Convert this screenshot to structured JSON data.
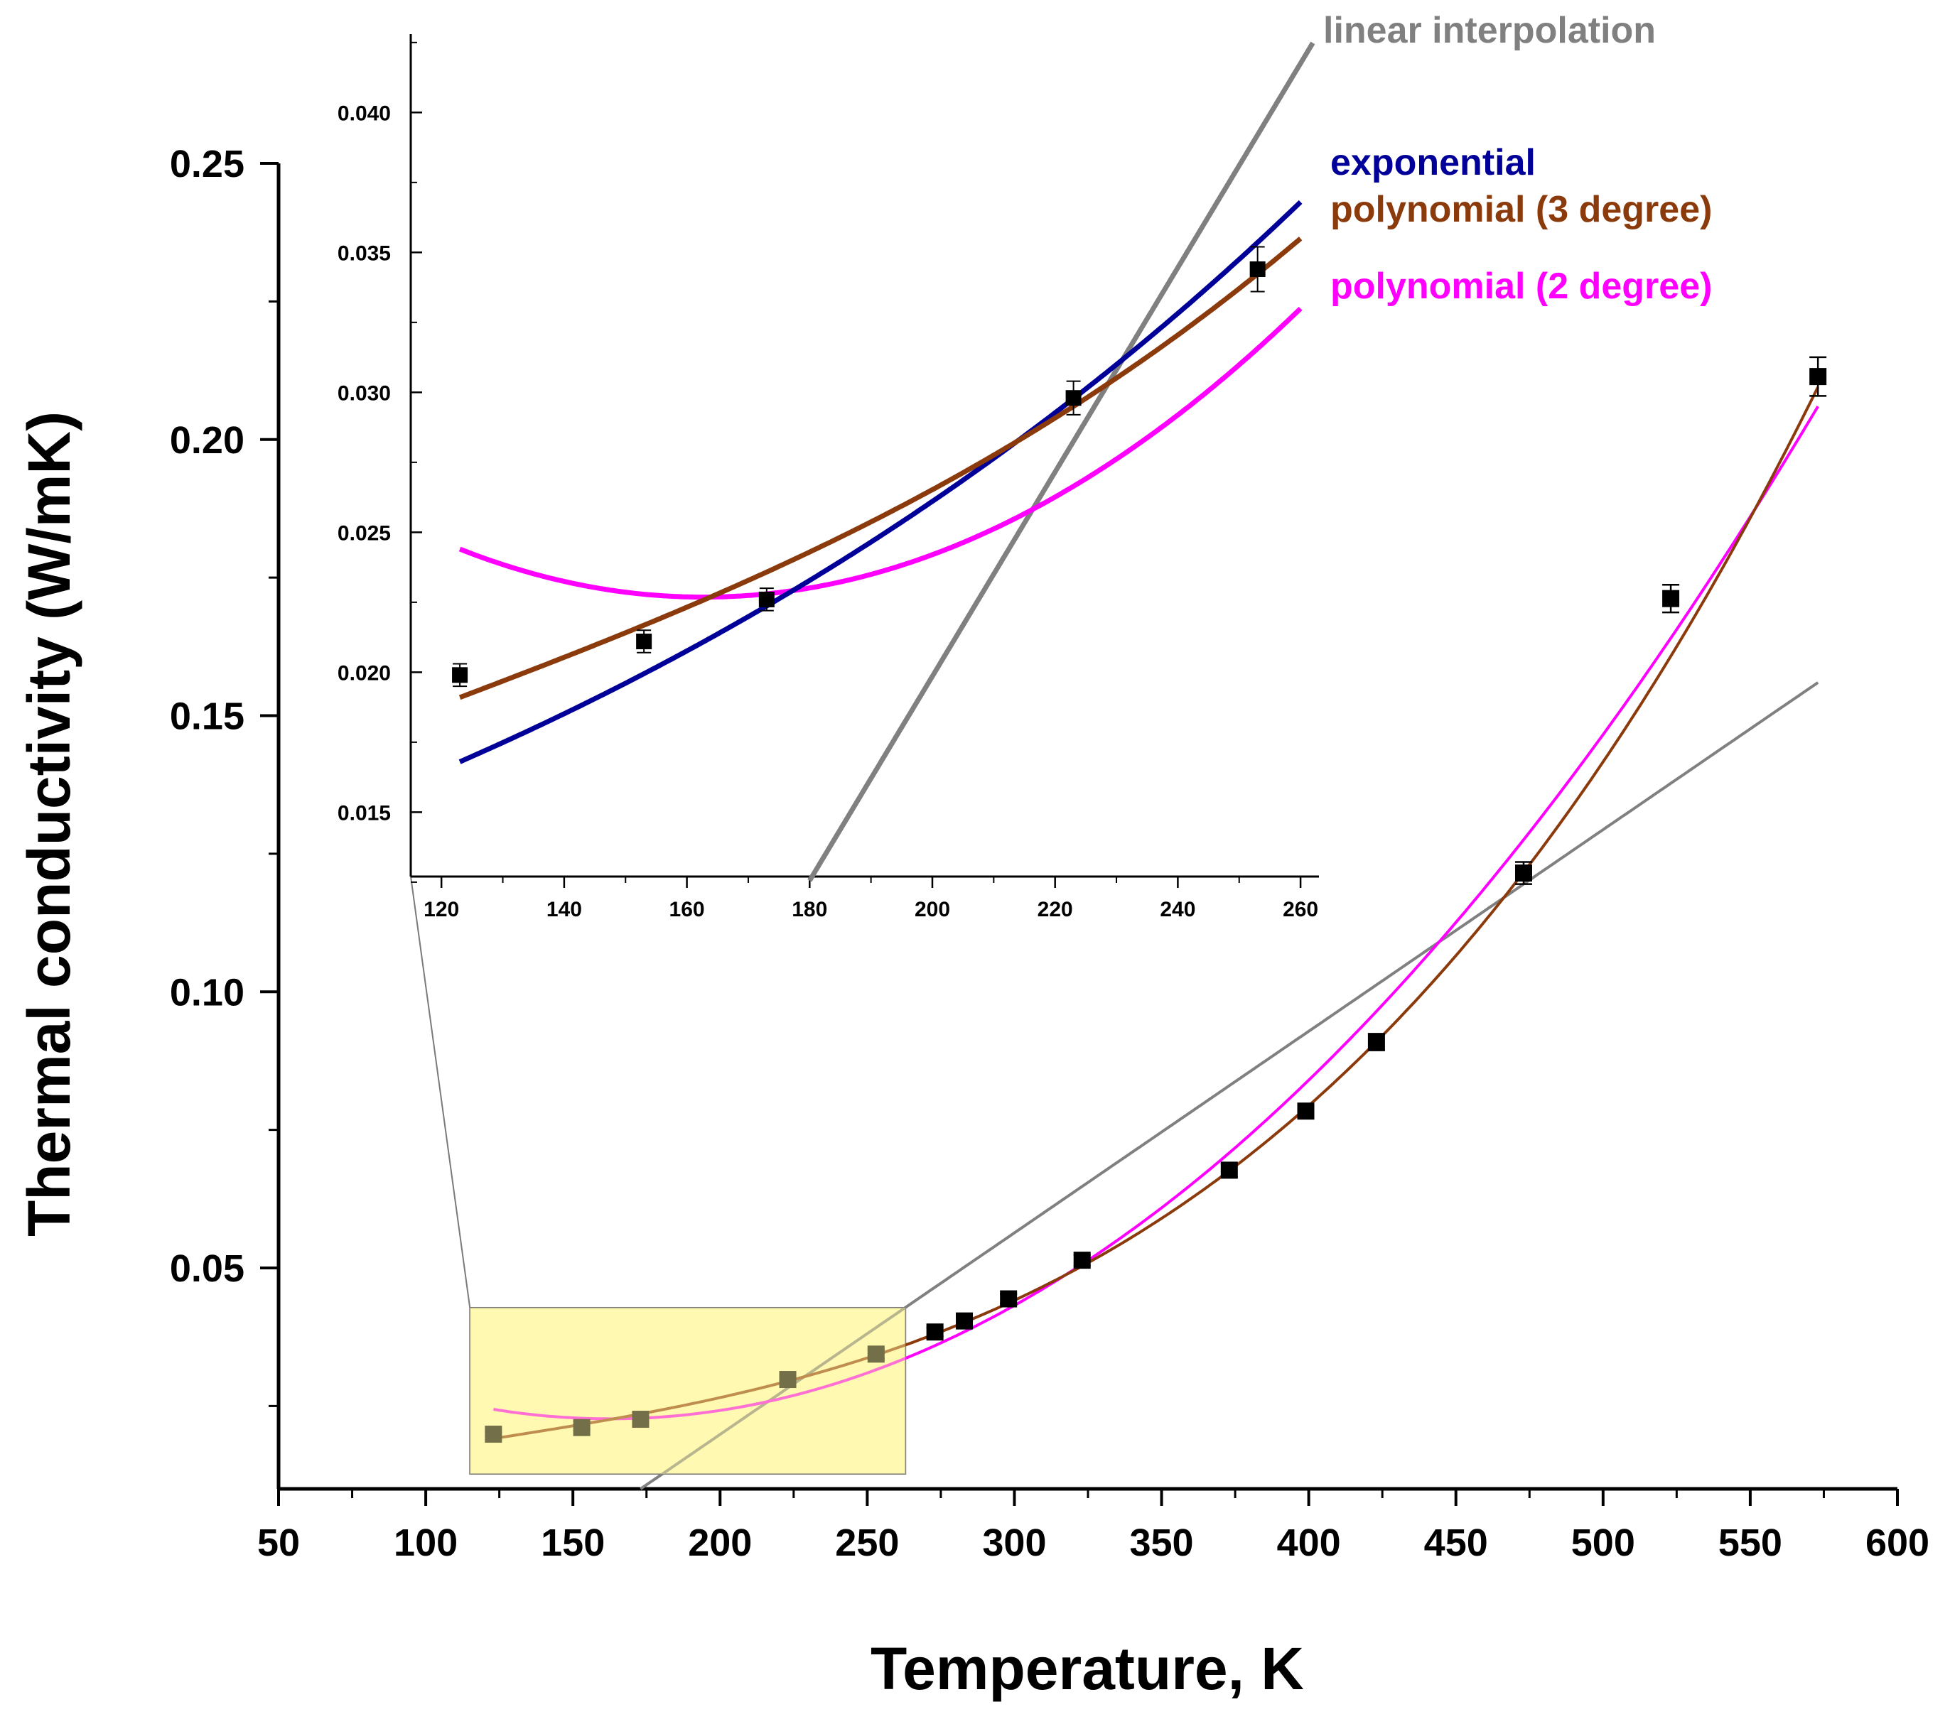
{
  "chart_data": {
    "type": "scatter",
    "xlabel": "Temperature, K",
    "ylabel": "Thermal conductivity (W/mK)",
    "xlim": [
      50,
      600
    ],
    "ylim": [
      0.01,
      0.25
    ],
    "x_ticks": [
      "50",
      "100",
      "150",
      "200",
      "250",
      "300",
      "350",
      "400",
      "450",
      "500",
      "550",
      "600"
    ],
    "y_ticks": [
      "0.05",
      "0.10",
      "0.15",
      "0.20",
      "0.25"
    ],
    "measurements": {
      "x": [
        123,
        153,
        173,
        223,
        253,
        273,
        283,
        298,
        323,
        373,
        399,
        423,
        473,
        523,
        573
      ],
      "y": [
        0.0199,
        0.0211,
        0.0226,
        0.0298,
        0.0344,
        0.0384,
        0.0404,
        0.0444,
        0.0514,
        0.0677,
        0.0784,
        0.0909,
        0.1215,
        0.1712,
        0.2114
      ],
      "err": [
        0.0004,
        0.0004,
        0.0004,
        0.0006,
        0.0008,
        0.0008,
        0.0008,
        0.0009,
        0.001,
        0.0012,
        0.0012,
        0.0015,
        0.002,
        0.0025,
        0.0035
      ]
    },
    "fits": [
      {
        "name": "linear interpolation",
        "color": "#808080",
        "x_range": [
          173,
          573
        ],
        "y_range": [
          0.01,
          0.156
        ]
      },
      {
        "name": "exponential",
        "color": "#000099",
        "x_range": [
          123,
          260
        ],
        "y_range": [
          0.0168,
          0.0368
        ]
      },
      {
        "name": "polynomial (3 degree)",
        "color": "#8b3a0c",
        "x_range": [
          123,
          573
        ],
        "y_range": [
          0.0191,
          0.2095
        ]
      },
      {
        "name": "polynomial (2 degree)",
        "color": "#ff00ff",
        "x_range": [
          123,
          573
        ],
        "y_range": [
          0.0244,
          0.206
        ]
      }
    ],
    "highlight_box": {
      "x_range": [
        115,
        263
      ],
      "y_range": [
        0.0127,
        0.0428
      ]
    },
    "inset": {
      "xlim": [
        115,
        263
      ],
      "ylim": [
        0.0127,
        0.0428
      ],
      "x_ticks": [
        "120",
        "140",
        "160",
        "180",
        "200",
        "220",
        "240",
        "260"
      ],
      "y_ticks": [
        "0.015",
        "0.020",
        "0.025",
        "0.030",
        "0.035",
        "0.040"
      ]
    },
    "legend": [
      {
        "label": "linear interpolation",
        "color": "#808080"
      },
      {
        "label": "exponential",
        "color": "#000099"
      },
      {
        "label": "polynomial (3 degree)",
        "color": "#8b3a0c"
      },
      {
        "label": "polynomial (2 degree)",
        "color": "#ff00ff"
      }
    ]
  }
}
